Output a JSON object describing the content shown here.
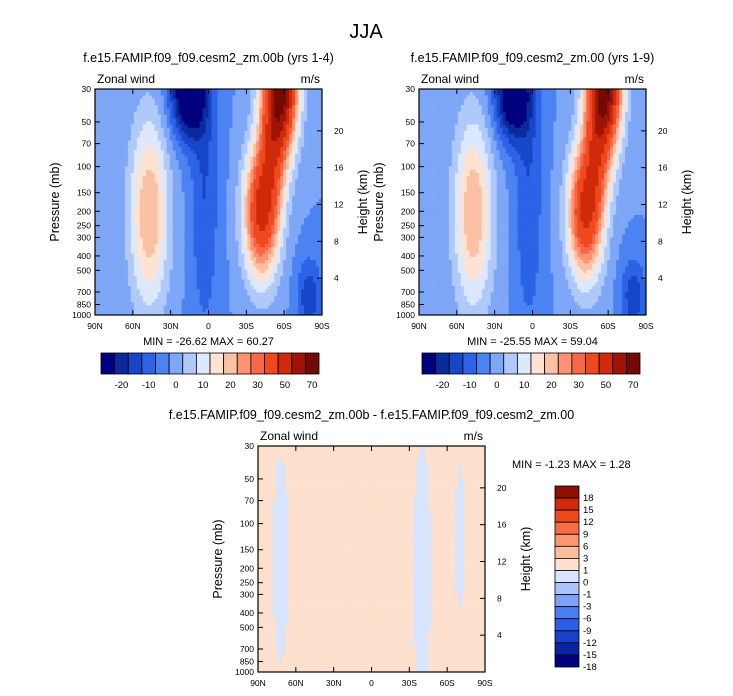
{
  "figure": {
    "title": "JJA"
  },
  "colors": {
    "abs_scale": [
      "#00007f",
      "#0a2a9e",
      "#1846c8",
      "#2d63e6",
      "#4c83f2",
      "#7ea7f8",
      "#b0c9fb",
      "#dde8fd",
      "#fde3d2",
      "#fcc0a4",
      "#fa9273",
      "#f76846",
      "#ef4a1f",
      "#cf2b0b",
      "#a01408",
      "#730a05"
    ],
    "diff_scale": [
      "#00007f",
      "#0a24a0",
      "#1740cc",
      "#2b5de6",
      "#4a7cf2",
      "#7ca2f8",
      "#aac4fb",
      "#d6e4fd",
      "#fde0cd",
      "#fbbd9e",
      "#f99870",
      "#f76c45",
      "#ef4a1f",
      "#cf2b0b",
      "#8c0e05"
    ]
  },
  "chart_data": [
    {
      "type": "heatmap",
      "title": "f.e15.FAMIP.f09_f09.cesm2_zm.00b (yrs 1-4)",
      "left_label": "Zonal wind",
      "right_label": "m/s",
      "ylabel": "Pressure (mb)",
      "y2label": "Height (km)",
      "x_ticks": [
        "90N",
        "60N",
        "30N",
        "0",
        "30S",
        "60S",
        "90S"
      ],
      "y_ticks": [
        "30",
        "50",
        "70",
        "100",
        "150",
        "200",
        "250",
        "300",
        "400",
        "500",
        "700",
        "850",
        "1000"
      ],
      "y2_ticks": [
        "20",
        "16",
        "12",
        "8",
        "4"
      ],
      "stats": "MIN = -26.62   MAX = 60.27",
      "min": -26.62,
      "max": 60.27,
      "colorbar_labels": [
        "-20",
        "-10",
        "0",
        "10",
        "20",
        "30",
        "50",
        "70"
      ]
    },
    {
      "type": "heatmap",
      "title": "f.e15.FAMIP.f09_f09.cesm2_zm.00 (yrs 1-9)",
      "left_label": "Zonal wind",
      "right_label": "m/s",
      "ylabel": "Pressure (mb)",
      "y2label": "Height (km)",
      "x_ticks": [
        "90N",
        "60N",
        "30N",
        "0",
        "30S",
        "60S",
        "90S"
      ],
      "y_ticks": [
        "30",
        "50",
        "70",
        "100",
        "150",
        "200",
        "250",
        "300",
        "400",
        "500",
        "700",
        "850",
        "1000"
      ],
      "y2_ticks": [
        "20",
        "16",
        "12",
        "8",
        "4"
      ],
      "stats": "MIN = -25.55   MAX = 59.04",
      "min": -25.55,
      "max": 59.04,
      "colorbar_labels": [
        "-20",
        "-10",
        "0",
        "10",
        "20",
        "30",
        "50",
        "70"
      ]
    },
    {
      "type": "heatmap",
      "title": "f.e15.FAMIP.f09_f09.cesm2_zm.00b - f.e15.FAMIP.f09_f09.cesm2_zm.00",
      "left_label": "Zonal wind",
      "right_label": "m/s",
      "ylabel": "Pressure (mb)",
      "y2label": "Height (km)",
      "x_ticks": [
        "90N",
        "60N",
        "30N",
        "0",
        "30S",
        "60S",
        "90S"
      ],
      "y_ticks": [
        "30",
        "50",
        "70",
        "100",
        "150",
        "200",
        "250",
        "300",
        "400",
        "500",
        "700",
        "850",
        "1000"
      ],
      "y2_ticks": [
        "20",
        "16",
        "12",
        "8",
        "4"
      ],
      "stats": "MIN = -1.23   MAX =  1.28",
      "min": -1.23,
      "max": 1.28,
      "colorbar_labels": [
        "18",
        "15",
        "12",
        "9",
        "6",
        "3",
        "1",
        "0",
        "-1",
        "-3",
        "-6",
        "-9",
        "-12",
        "-15",
        "-18"
      ]
    }
  ]
}
